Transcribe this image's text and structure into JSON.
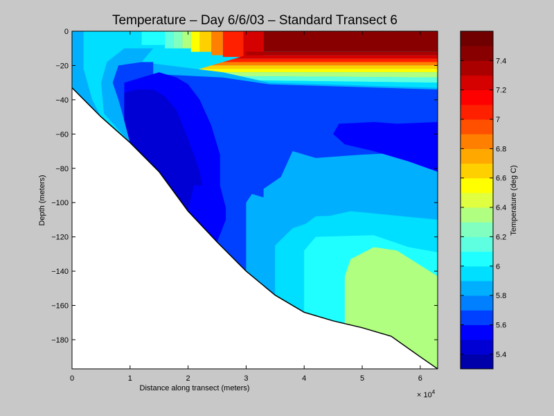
{
  "chart_data": {
    "type": "heatmap",
    "title": "Temperature – Day 6/6/03 – Standard Transect 6",
    "xlabel": "Distance along transect (meters)",
    "ylabel": "Depth (meters)",
    "x_exponent_label": "× 10",
    "x_exponent_power": "4",
    "xlim": [
      0,
      63000
    ],
    "ylim": [
      -197,
      0
    ],
    "x_ticks": [
      {
        "value": 0,
        "label": "0"
      },
      {
        "value": 10000,
        "label": "1"
      },
      {
        "value": 20000,
        "label": "2"
      },
      {
        "value": 30000,
        "label": "3"
      },
      {
        "value": 40000,
        "label": "4"
      },
      {
        "value": 50000,
        "label": "5"
      },
      {
        "value": 60000,
        "label": "6"
      }
    ],
    "y_ticks": [
      {
        "value": 0,
        "label": "0"
      },
      {
        "value": -20,
        "label": "−20"
      },
      {
        "value": -40,
        "label": "−40"
      },
      {
        "value": -60,
        "label": "−60"
      },
      {
        "value": -80,
        "label": "−80"
      },
      {
        "value": -100,
        "label": "−100"
      },
      {
        "value": -120,
        "label": "−120"
      },
      {
        "value": -140,
        "label": "−140"
      },
      {
        "value": -160,
        "label": "−160"
      },
      {
        "value": -180,
        "label": "−180"
      }
    ],
    "bathymetry": [
      [
        0,
        -33
      ],
      [
        5000,
        -50
      ],
      [
        10000,
        -65
      ],
      [
        15000,
        -82
      ],
      [
        20000,
        -105
      ],
      [
        25000,
        -123
      ],
      [
        30000,
        -140
      ],
      [
        35000,
        -154
      ],
      [
        40000,
        -164
      ],
      [
        45000,
        -169
      ],
      [
        50000,
        -173
      ],
      [
        55000,
        -178
      ],
      [
        60000,
        -190
      ],
      [
        63000,
        -197
      ]
    ],
    "fill_regions": [
      {
        "level": 5.9,
        "points": [
          [
            0,
            0
          ],
          [
            2000,
            0
          ],
          [
            2000,
            -22
          ],
          [
            3500,
            -40
          ],
          [
            5000,
            -50
          ],
          [
            0,
            -33
          ]
        ]
      },
      {
        "level": 6.0,
        "points": [
          [
            2000,
            0
          ],
          [
            12000,
            0
          ],
          [
            12000,
            -8
          ],
          [
            9000,
            -10
          ],
          [
            6000,
            -18
          ],
          [
            5000,
            -30
          ],
          [
            5500,
            -48
          ],
          [
            5000,
            -50
          ],
          [
            3500,
            -40
          ],
          [
            2000,
            -22
          ]
        ]
      },
      {
        "level": 6.1,
        "points": [
          [
            12000,
            0
          ],
          [
            16000,
            0
          ],
          [
            16000,
            -8
          ],
          [
            12000,
            -8
          ]
        ]
      },
      {
        "level": 6.2,
        "points": [
          [
            16000,
            0
          ],
          [
            17500,
            0
          ],
          [
            17500,
            -10
          ],
          [
            16000,
            -10
          ]
        ]
      },
      {
        "level": 6.3,
        "points": [
          [
            17500,
            0
          ],
          [
            19000,
            0
          ],
          [
            19000,
            -10
          ],
          [
            17500,
            -10
          ]
        ]
      },
      {
        "level": 6.4,
        "points": [
          [
            19000,
            0
          ],
          [
            20500,
            0
          ],
          [
            20500,
            -10
          ],
          [
            19000,
            -10
          ]
        ]
      },
      {
        "level": 6.6,
        "points": [
          [
            20500,
            0
          ],
          [
            22000,
            0
          ],
          [
            22000,
            -12
          ],
          [
            20500,
            -12
          ]
        ]
      },
      {
        "level": 6.7,
        "points": [
          [
            22000,
            0
          ],
          [
            24000,
            0
          ],
          [
            24000,
            -12
          ],
          [
            22000,
            -12
          ]
        ]
      },
      {
        "level": 6.9,
        "points": [
          [
            24000,
            0
          ],
          [
            26000,
            0
          ],
          [
            26000,
            -14
          ],
          [
            24000,
            -14
          ]
        ]
      },
      {
        "level": 7.1,
        "points": [
          [
            26000,
            0
          ],
          [
            29500,
            0
          ],
          [
            29500,
            -15
          ],
          [
            26000,
            -15
          ]
        ]
      },
      {
        "level": 7.3,
        "points": [
          [
            29500,
            0
          ],
          [
            33000,
            0
          ],
          [
            33000,
            -15
          ],
          [
            29500,
            -15
          ]
        ]
      },
      {
        "level": 7.5,
        "points": [
          [
            33000,
            0
          ],
          [
            63000,
            0
          ],
          [
            63000,
            -12
          ],
          [
            33000,
            -12
          ]
        ]
      },
      {
        "level": 7.4,
        "points": [
          [
            30000,
            -12
          ],
          [
            63000,
            -12
          ],
          [
            63000,
            -14
          ],
          [
            30000,
            -14
          ]
        ]
      },
      {
        "level": 7.3,
        "points": [
          [
            30000,
            -14
          ],
          [
            63000,
            -14
          ],
          [
            63000,
            -16
          ],
          [
            28000,
            -16
          ]
        ]
      },
      {
        "level": 7.1,
        "points": [
          [
            28000,
            -16
          ],
          [
            63000,
            -16
          ],
          [
            63000,
            -18
          ],
          [
            26000,
            -18
          ]
        ]
      },
      {
        "level": 6.9,
        "points": [
          [
            26000,
            -18
          ],
          [
            63000,
            -18
          ],
          [
            63000,
            -20
          ],
          [
            24000,
            -20
          ]
        ]
      },
      {
        "level": 6.7,
        "points": [
          [
            24000,
            -20
          ],
          [
            63000,
            -20
          ],
          [
            63000,
            -22
          ],
          [
            22000,
            -22
          ]
        ]
      },
      {
        "level": 6.6,
        "points": [
          [
            22000,
            -22
          ],
          [
            63000,
            -22
          ],
          [
            63000,
            -24
          ],
          [
            20000,
            -24
          ]
        ]
      },
      {
        "level": 6.4,
        "points": [
          [
            20000,
            -24
          ],
          [
            63000,
            -24
          ],
          [
            63000,
            -27
          ],
          [
            18000,
            -26
          ]
        ]
      },
      {
        "level": 6.2,
        "points": [
          [
            18000,
            -26
          ],
          [
            63000,
            -27
          ],
          [
            63000,
            -30
          ],
          [
            15000,
            -28
          ]
        ]
      },
      {
        "level": 6.0,
        "points": [
          [
            15000,
            -28
          ],
          [
            63000,
            -30
          ],
          [
            63000,
            -34
          ],
          [
            20000,
            -30
          ],
          [
            13000,
            -34
          ]
        ]
      },
      {
        "level": 5.9,
        "points": [
          [
            9000,
            -10
          ],
          [
            14000,
            -10
          ],
          [
            12000,
            -18
          ],
          [
            8000,
            -20
          ],
          [
            7000,
            -30
          ],
          [
            6000,
            -45
          ],
          [
            5500,
            -48
          ],
          [
            5000,
            -30
          ],
          [
            6000,
            -18
          ]
        ]
      },
      {
        "level": 5.9,
        "points": [
          [
            12000,
            -18
          ],
          [
            26000,
            -24
          ],
          [
            34000,
            -30
          ],
          [
            63000,
            -33
          ],
          [
            63000,
            -110
          ],
          [
            48000,
            -105
          ],
          [
            44000,
            -108
          ],
          [
            38000,
            -115
          ],
          [
            35000,
            -125
          ],
          [
            35000,
            -154
          ],
          [
            30000,
            -140
          ],
          [
            25000,
            -123
          ],
          [
            20000,
            -105
          ],
          [
            15000,
            -82
          ],
          [
            10000,
            -65
          ],
          [
            5500,
            -48
          ],
          [
            6000,
            -45
          ],
          [
            7000,
            -30
          ],
          [
            8000,
            -20
          ]
        ]
      },
      {
        "level": 5.7,
        "points": [
          [
            12000,
            -18
          ],
          [
            14000,
            -18
          ],
          [
            14000,
            -25
          ],
          [
            26000,
            -27
          ],
          [
            34000,
            -31
          ],
          [
            63000,
            -34
          ],
          [
            63000,
            -70
          ],
          [
            50000,
            -72
          ],
          [
            42000,
            -74
          ],
          [
            38000,
            -70
          ],
          [
            36000,
            -85
          ],
          [
            33000,
            -92
          ],
          [
            33000,
            -97
          ],
          [
            31000,
            -95
          ],
          [
            30000,
            -100
          ],
          [
            30000,
            -140
          ],
          [
            25000,
            -123
          ],
          [
            20000,
            -105
          ],
          [
            15000,
            -82
          ],
          [
            10000,
            -65
          ],
          [
            9000,
            -52
          ],
          [
            8000,
            -40
          ],
          [
            7000,
            -30
          ],
          [
            8000,
            -20
          ]
        ]
      },
      {
        "level": 5.6,
        "points": [
          [
            9000,
            -30
          ],
          [
            11000,
            -28
          ],
          [
            15000,
            -24
          ],
          [
            18000,
            -27
          ],
          [
            20000,
            -31
          ],
          [
            22000,
            -40
          ],
          [
            24000,
            -55
          ],
          [
            25500,
            -72
          ],
          [
            25500,
            -90
          ],
          [
            26500,
            -103
          ],
          [
            26500,
            -110
          ],
          [
            25000,
            -123
          ],
          [
            20000,
            -105
          ],
          [
            15000,
            -82
          ],
          [
            10000,
            -65
          ],
          [
            9000,
            -52
          ]
        ]
      },
      {
        "level": 5.4,
        "points": [
          [
            9000,
            -36
          ],
          [
            11000,
            -34
          ],
          [
            14000,
            -34
          ],
          [
            16000,
            -38
          ],
          [
            18000,
            -46
          ],
          [
            20000,
            -63
          ],
          [
            21000,
            -72
          ],
          [
            22000,
            -82
          ],
          [
            22500,
            -90
          ],
          [
            21000,
            -90
          ],
          [
            20000,
            -105
          ],
          [
            15000,
            -82
          ],
          [
            10000,
            -65
          ],
          [
            9000,
            -52
          ]
        ]
      },
      {
        "level": 5.6,
        "points": [
          [
            46000,
            -54
          ],
          [
            52000,
            -53
          ],
          [
            56000,
            -54
          ],
          [
            63000,
            -53
          ],
          [
            63000,
            -82
          ],
          [
            58000,
            -76
          ],
          [
            52000,
            -70
          ],
          [
            47000,
            -66
          ],
          [
            45000,
            -60
          ]
        ]
      },
      {
        "level": 6.0,
        "points": [
          [
            42000,
            -108
          ],
          [
            52000,
            -107
          ],
          [
            60000,
            -113
          ],
          [
            63000,
            -118
          ],
          [
            63000,
            -190
          ],
          [
            60000,
            -190
          ],
          [
            55000,
            -178
          ],
          [
            50000,
            -173
          ],
          [
            45000,
            -169
          ],
          [
            40000,
            -164
          ],
          [
            35000,
            -154
          ],
          [
            35000,
            -128
          ],
          [
            38000,
            -118
          ]
        ]
      },
      {
        "level": 6.1,
        "points": [
          [
            42000,
            -120
          ],
          [
            52000,
            -119
          ],
          [
            58000,
            -126
          ],
          [
            63000,
            -129
          ],
          [
            63000,
            -190
          ],
          [
            60000,
            -190
          ],
          [
            55000,
            -178
          ],
          [
            50000,
            -173
          ],
          [
            45000,
            -169
          ],
          [
            40000,
            -164
          ],
          [
            40000,
            -128
          ]
        ]
      },
      {
        "level": 6.4,
        "points": [
          [
            48000,
            -133
          ],
          [
            52000,
            -126
          ],
          [
            56000,
            -128
          ],
          [
            63000,
            -143
          ],
          [
            63000,
            -197
          ],
          [
            60000,
            -190
          ],
          [
            55000,
            -178
          ],
          [
            50000,
            -173
          ],
          [
            47000,
            -171
          ],
          [
            47000,
            -143
          ]
        ]
      }
    ],
    "colorbar": {
      "label": "Temperature (deg C)",
      "min": 5.3,
      "max": 7.6,
      "levels": [
        5.3,
        5.4,
        5.5,
        5.6,
        5.7,
        5.8,
        5.9,
        6.0,
        6.1,
        6.2,
        6.3,
        6.4,
        6.5,
        6.6,
        6.7,
        6.8,
        6.9,
        7.0,
        7.1,
        7.2,
        7.3,
        7.4,
        7.5,
        7.6
      ],
      "colors": [
        "#0000aa",
        "#0000d5",
        "#0000ff",
        "#0040ff",
        "#0080ff",
        "#00b0ff",
        "#00dfff",
        "#20ffff",
        "#5dffe0",
        "#80ffc0",
        "#b0ff80",
        "#e0ff40",
        "#ffff00",
        "#ffd000",
        "#ffa800",
        "#ff8000",
        "#ff5000",
        "#ff2000",
        "#ff0000",
        "#d50000",
        "#aa0000",
        "#880000",
        "#700000"
      ],
      "ticks": [
        {
          "value": 5.4,
          "label": "5.4"
        },
        {
          "value": 5.6,
          "label": "5.6"
        },
        {
          "value": 5.8,
          "label": "5.8"
        },
        {
          "value": 6.0,
          "label": "6"
        },
        {
          "value": 6.2,
          "label": "6.2"
        },
        {
          "value": 6.4,
          "label": "6.4"
        },
        {
          "value": 6.6,
          "label": "6.6"
        },
        {
          "value": 6.8,
          "label": "6.8"
        },
        {
          "value": 7.0,
          "label": "7"
        },
        {
          "value": 7.2,
          "label": "7.2"
        },
        {
          "value": 7.4,
          "label": "7.4"
        }
      ]
    },
    "colors": {
      "figure_background": "#c8c8c8",
      "seafloor": "#ffffff",
      "axis": "#000000"
    }
  }
}
